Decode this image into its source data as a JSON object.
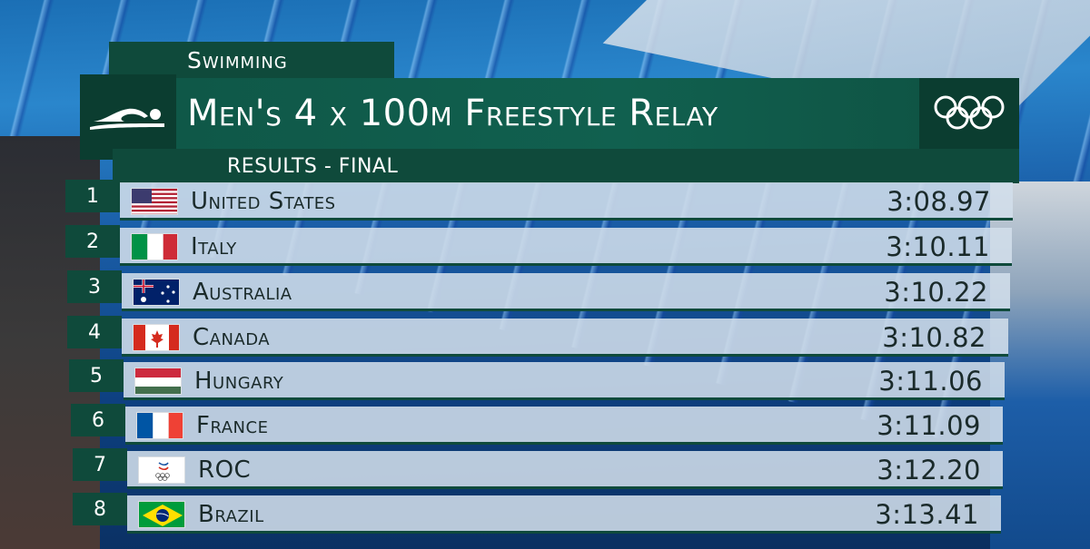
{
  "header": {
    "sport": "Swimming",
    "event_title": "Men's 4 x 100m Freestyle Relay",
    "phase": "RESULTS - FINAL"
  },
  "results": [
    {
      "rank": "1",
      "country": "United States",
      "time": "3:08.97",
      "flag": "usa-flag"
    },
    {
      "rank": "2",
      "country": "Italy",
      "time": "3:10.11",
      "flag": "italy-flag"
    },
    {
      "rank": "3",
      "country": "Australia",
      "time": "3:10.22",
      "flag": "australia-flag"
    },
    {
      "rank": "4",
      "country": "Canada",
      "time": "3:10.82",
      "flag": "canada-flag"
    },
    {
      "rank": "5",
      "country": "Hungary",
      "time": "3:11.06",
      "flag": "hungary-flag"
    },
    {
      "rank": "6",
      "country": "France",
      "time": "3:11.09",
      "flag": "france-flag"
    },
    {
      "rank": "7",
      "country": "ROC",
      "time": "3:12.20",
      "flag": "roc-flag"
    },
    {
      "rank": "8",
      "country": "Brazil",
      "time": "3:13.41",
      "flag": "brazil-flag"
    }
  ],
  "colors": {
    "panel_dark": "#0b3d30",
    "panel": "#0f4a3b",
    "title_panel": "#11604f",
    "row_bg": "#d2deea"
  },
  "icons": {
    "sport": "swimmer-icon",
    "brand": "olympic-rings-icon"
  }
}
